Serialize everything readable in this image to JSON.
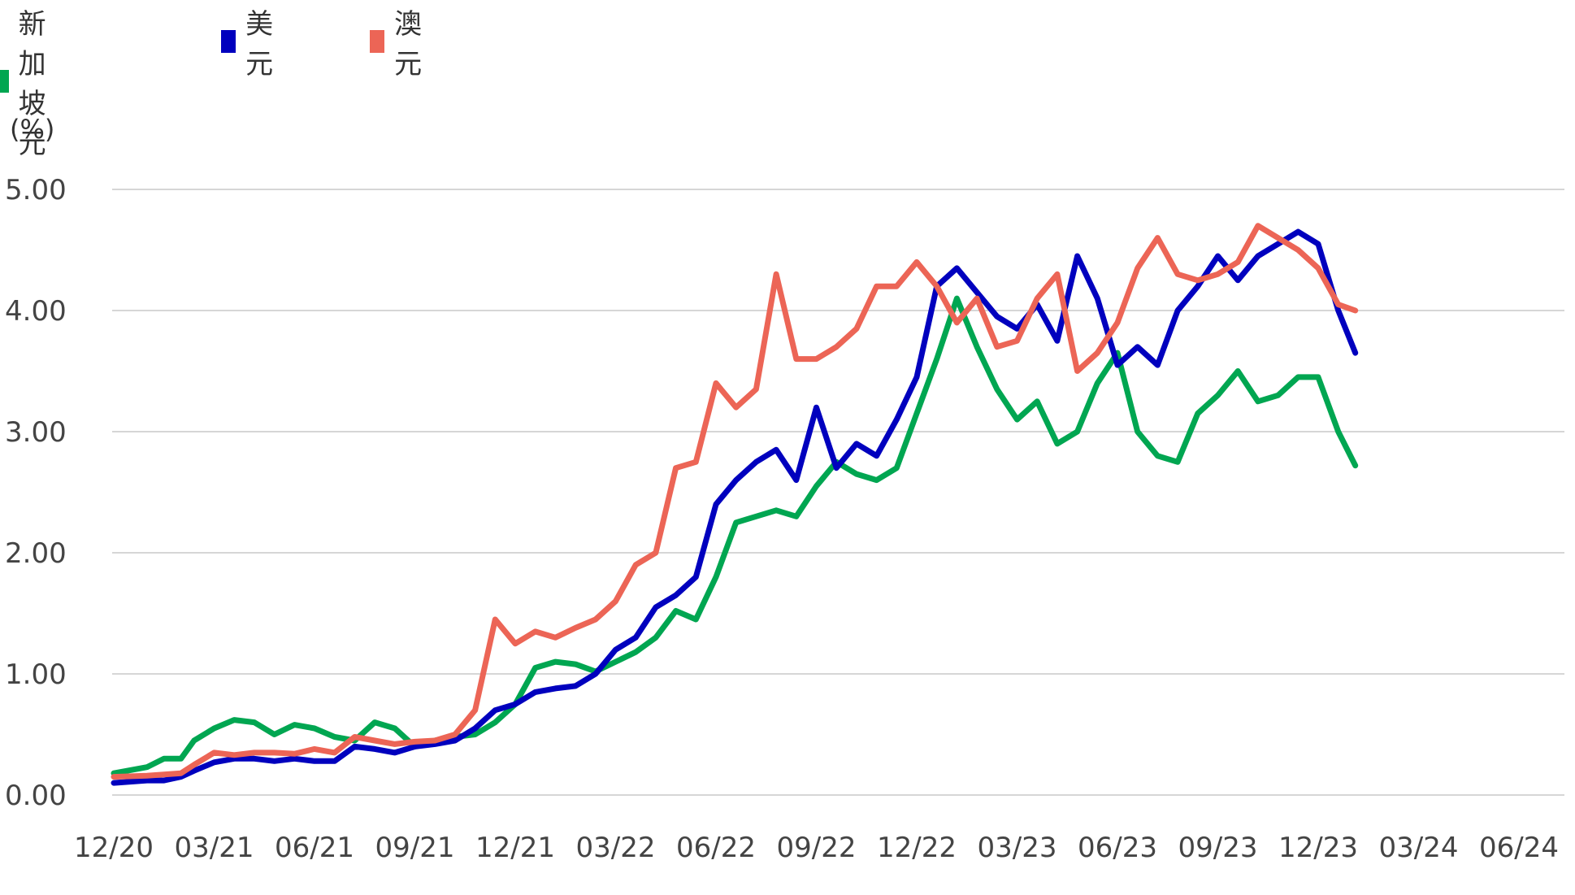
{
  "legend": [
    {
      "label": "新加坡元",
      "color": "#00A651"
    },
    {
      "label": "美元",
      "color": "#0000BE"
    },
    {
      "label": "澳元",
      "color": "#EC6556"
    }
  ],
  "chart_data": {
    "type": "line",
    "ylabel": "(%)",
    "ylim": [
      0,
      5
    ],
    "yticks": [
      "0.00",
      "1.00",
      "2.00",
      "3.00",
      "4.00",
      "5.00"
    ],
    "xticks": [
      "12/20",
      "03/21",
      "06/21",
      "09/21",
      "12/21",
      "03/22",
      "06/22",
      "09/22",
      "12/22",
      "03/23",
      "06/23",
      "09/23",
      "12/23",
      "03/24",
      "06/24"
    ],
    "grid": "horizontal",
    "legend_position": "top-left",
    "series": [
      {
        "name": "新加坡元",
        "color": "#00A651",
        "x": [
          0,
          0.33,
          0.5,
          0.67,
          0.8,
          1.0,
          1.2,
          1.4,
          1.6,
          1.8,
          2.0,
          2.2,
          2.4,
          2.6,
          2.8,
          3.0,
          3.2,
          3.4,
          3.6,
          3.8,
          4.0,
          4.2,
          4.4,
          4.6,
          4.8,
          5.0,
          5.2,
          5.4,
          5.6,
          5.8,
          6.0,
          6.2,
          6.4,
          6.6,
          6.8,
          7.0,
          7.2,
          7.4,
          7.6,
          7.8,
          8.0,
          8.2,
          8.4,
          8.6,
          8.8,
          9.0,
          9.2,
          9.4,
          9.6,
          9.8,
          10.0,
          10.2,
          10.4,
          10.6,
          10.8,
          11.0,
          11.2,
          11.4,
          11.6,
          11.8,
          12.0,
          12.2,
          12.37
        ],
        "y": [
          0.18,
          0.23,
          0.3,
          0.3,
          0.45,
          0.55,
          0.62,
          0.6,
          0.5,
          0.58,
          0.55,
          0.48,
          0.45,
          0.6,
          0.55,
          0.4,
          0.45,
          0.48,
          0.5,
          0.6,
          0.75,
          1.05,
          1.1,
          1.08,
          1.02,
          1.1,
          1.18,
          1.3,
          1.52,
          1.45,
          1.8,
          2.25,
          2.3,
          2.35,
          2.3,
          2.55,
          2.75,
          2.65,
          2.6,
          2.7,
          3.15,
          3.6,
          4.1,
          3.7,
          3.35,
          3.1,
          3.25,
          2.9,
          3.0,
          3.4,
          3.65,
          3.0,
          2.8,
          2.75,
          3.15,
          3.3,
          3.5,
          3.25,
          3.3,
          3.45,
          3.45,
          3.0,
          2.72
        ]
      },
      {
        "name": "美元",
        "color": "#0000BE",
        "x": [
          0,
          0.33,
          0.5,
          0.67,
          0.8,
          1.0,
          1.2,
          1.4,
          1.6,
          1.8,
          2.0,
          2.2,
          2.4,
          2.6,
          2.8,
          3.0,
          3.2,
          3.4,
          3.6,
          3.8,
          4.0,
          4.2,
          4.4,
          4.6,
          4.8,
          5.0,
          5.2,
          5.4,
          5.6,
          5.8,
          6.0,
          6.2,
          6.4,
          6.6,
          6.8,
          7.0,
          7.2,
          7.4,
          7.6,
          7.8,
          8.0,
          8.2,
          8.4,
          8.6,
          8.8,
          9.0,
          9.2,
          9.4,
          9.6,
          9.8,
          10.0,
          10.2,
          10.4,
          10.6,
          10.8,
          11.0,
          11.2,
          11.4,
          11.6,
          11.8,
          12.0,
          12.2,
          12.37
        ],
        "y": [
          0.1,
          0.12,
          0.12,
          0.15,
          0.2,
          0.27,
          0.3,
          0.3,
          0.28,
          0.3,
          0.28,
          0.28,
          0.4,
          0.38,
          0.35,
          0.4,
          0.42,
          0.45,
          0.55,
          0.7,
          0.75,
          0.85,
          0.88,
          0.9,
          1.0,
          1.2,
          1.3,
          1.55,
          1.65,
          1.8,
          2.4,
          2.6,
          2.75,
          2.85,
          2.6,
          3.2,
          2.7,
          2.9,
          2.8,
          3.1,
          3.45,
          4.2,
          4.35,
          4.15,
          3.95,
          3.85,
          4.05,
          3.75,
          4.45,
          4.1,
          3.55,
          3.7,
          3.55,
          4.0,
          4.2,
          4.45,
          4.25,
          4.45,
          4.55,
          4.65,
          4.55,
          4.0,
          3.65
        ]
      },
      {
        "name": "澳元",
        "color": "#EC6556",
        "x": [
          0,
          0.33,
          0.5,
          0.67,
          0.8,
          1.0,
          1.2,
          1.4,
          1.6,
          1.8,
          2.0,
          2.2,
          2.4,
          2.6,
          2.8,
          3.0,
          3.2,
          3.4,
          3.6,
          3.8,
          4.0,
          4.2,
          4.4,
          4.6,
          4.8,
          5.0,
          5.2,
          5.4,
          5.6,
          5.8,
          6.0,
          6.2,
          6.4,
          6.6,
          6.8,
          7.0,
          7.2,
          7.4,
          7.6,
          7.8,
          8.0,
          8.2,
          8.4,
          8.6,
          8.8,
          9.0,
          9.2,
          9.4,
          9.6,
          9.8,
          10.0,
          10.2,
          10.4,
          10.6,
          10.8,
          11.0,
          11.2,
          11.4,
          11.6,
          11.8,
          12.0,
          12.2,
          12.37
        ],
        "y": [
          0.15,
          0.16,
          0.17,
          0.18,
          0.25,
          0.35,
          0.33,
          0.35,
          0.35,
          0.34,
          0.38,
          0.35,
          0.48,
          0.45,
          0.42,
          0.44,
          0.45,
          0.5,
          0.7,
          1.45,
          1.25,
          1.35,
          1.3,
          1.38,
          1.45,
          1.6,
          1.9,
          2.0,
          2.7,
          2.75,
          3.4,
          3.2,
          3.35,
          4.3,
          3.6,
          3.6,
          3.7,
          3.85,
          4.2,
          4.2,
          4.4,
          4.2,
          3.9,
          4.1,
          3.7,
          3.75,
          4.1,
          4.3,
          3.5,
          3.65,
          3.9,
          4.35,
          4.6,
          4.3,
          4.25,
          4.3,
          4.4,
          4.7,
          4.6,
          4.5,
          4.35,
          4.05,
          4.0
        ]
      }
    ]
  }
}
